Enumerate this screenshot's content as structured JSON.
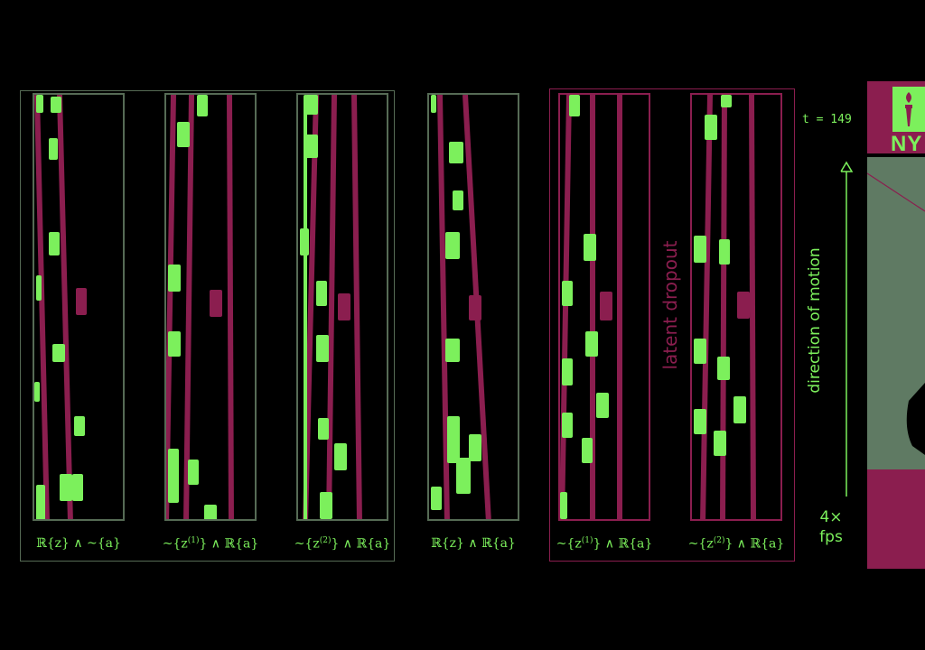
{
  "colors": {
    "green": "#7cf05c",
    "magenta": "#8b1e4f",
    "frame_neutral": "#566b55",
    "frame_dropout": "#8b1e4f",
    "grey_bg": "#5f7a63"
  },
  "panels": [
    {
      "id": "p1",
      "label_a": "ℝ{z} ∧ ~{a}",
      "sup": ""
    },
    {
      "id": "p2",
      "label_pre": "~{z",
      "sup": "(1)",
      "label_post": "} ∧ ℝ{a}"
    },
    {
      "id": "p3",
      "label_pre": "~{z",
      "sup": "(2)",
      "label_post": "} ∧ ℝ{a}"
    },
    {
      "id": "p4",
      "label_a": "ℝ{z} ∧ ℝ{a}",
      "sup": ""
    },
    {
      "id": "p5",
      "label_pre": "~{z",
      "sup": "(1)",
      "label_post": "} ∧ ℝ{a}"
    },
    {
      "id": "p6",
      "label_pre": "~{z",
      "sup": "(2)",
      "label_post": "} ∧ ℝ{a}"
    }
  ],
  "dropout_label": "latent dropout",
  "timestamp": "t = 149",
  "motion_label": "direction of motion",
  "fps_line1": "4×",
  "fps_line2": "fps",
  "logo_text": "NY"
}
